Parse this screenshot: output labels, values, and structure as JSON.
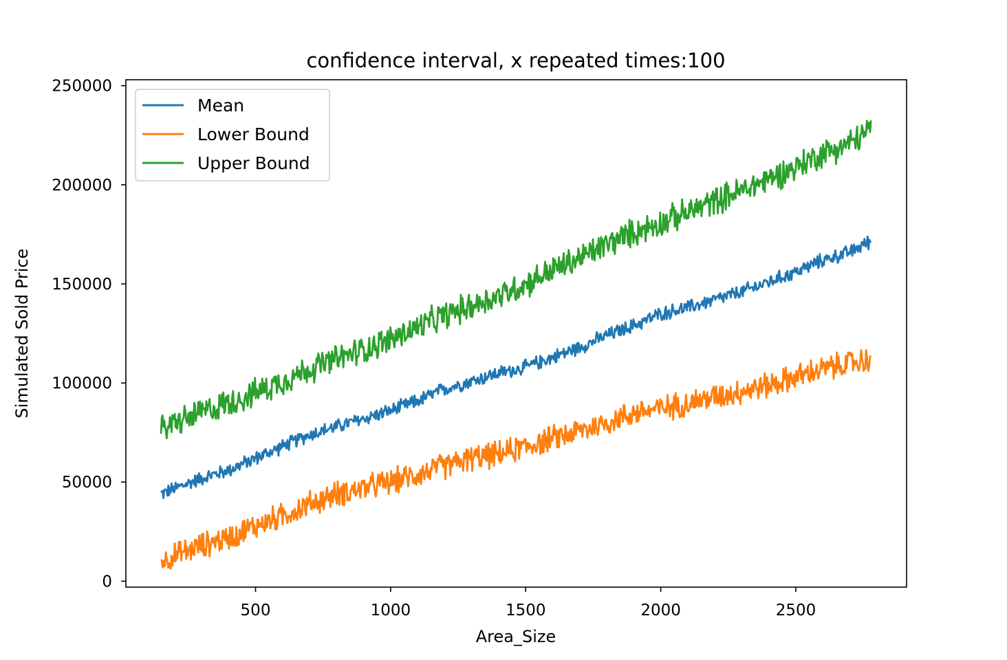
{
  "chart_data": {
    "type": "line",
    "title": "confidence interval, x repeated times:100",
    "xlabel": "Area_Size",
    "ylabel": "Simulated Sold Price",
    "xlim": [
      20,
      2910
    ],
    "ylim": [
      -3000,
      253000
    ],
    "xticks": [
      500,
      1000,
      1500,
      2000,
      2500
    ],
    "yticks": [
      0,
      50000,
      100000,
      150000,
      200000,
      250000
    ],
    "legend_position": "upper-left",
    "grid": false,
    "x_range": [
      150,
      2780
    ],
    "series": [
      {
        "name": "Mean",
        "color": "#1f77b4",
        "values": [
          [
            150,
            44000
          ],
          [
            300,
            52000
          ],
          [
            400,
            56000
          ],
          [
            500,
            62000
          ],
          [
            600,
            68000
          ],
          [
            700,
            74000
          ],
          [
            800,
            78000
          ],
          [
            900,
            82000
          ],
          [
            1000,
            86000
          ],
          [
            1100,
            91000
          ],
          [
            1200,
            97000
          ],
          [
            1300,
            101000
          ],
          [
            1400,
            105000
          ],
          [
            1500,
            108000
          ],
          [
            1600,
            113000
          ],
          [
            1700,
            118000
          ],
          [
            1800,
            124000
          ],
          [
            1900,
            129000
          ],
          [
            2000,
            135000
          ],
          [
            2100,
            138000
          ],
          [
            2200,
            142000
          ],
          [
            2300,
            146000
          ],
          [
            2400,
            151000
          ],
          [
            2500,
            156000
          ],
          [
            2600,
            162000
          ],
          [
            2700,
            166000
          ],
          [
            2780,
            172000
          ]
        ],
        "noise": 3000
      },
      {
        "name": "Lower Bound",
        "color": "#ff7f0e",
        "values": [
          [
            150,
            10000
          ],
          [
            300,
            18000
          ],
          [
            400,
            22000
          ],
          [
            500,
            28000
          ],
          [
            600,
            33000
          ],
          [
            700,
            39000
          ],
          [
            800,
            44000
          ],
          [
            900,
            47000
          ],
          [
            1000,
            50000
          ],
          [
            1100,
            54000
          ],
          [
            1200,
            58000
          ],
          [
            1300,
            62000
          ],
          [
            1400,
            64000
          ],
          [
            1500,
            68000
          ],
          [
            1600,
            72000
          ],
          [
            1700,
            76000
          ],
          [
            1800,
            80000
          ],
          [
            1900,
            85000
          ],
          [
            2000,
            87000
          ],
          [
            2100,
            90000
          ],
          [
            2200,
            93000
          ],
          [
            2300,
            96000
          ],
          [
            2400,
            99000
          ],
          [
            2500,
            103000
          ],
          [
            2600,
            107000
          ],
          [
            2700,
            110000
          ],
          [
            2780,
            112000
          ]
        ],
        "noise": 5500
      },
      {
        "name": "Upper Bound",
        "color": "#2ca02c",
        "values": [
          [
            150,
            77000
          ],
          [
            300,
            85000
          ],
          [
            400,
            90000
          ],
          [
            500,
            95000
          ],
          [
            600,
            101000
          ],
          [
            700,
            107000
          ],
          [
            800,
            112000
          ],
          [
            900,
            117000
          ],
          [
            1000,
            122000
          ],
          [
            1100,
            128000
          ],
          [
            1200,
            134000
          ],
          [
            1300,
            139000
          ],
          [
            1400,
            144000
          ],
          [
            1500,
            150000
          ],
          [
            1600,
            157000
          ],
          [
            1700,
            163000
          ],
          [
            1800,
            170000
          ],
          [
            1900,
            176000
          ],
          [
            2000,
            181000
          ],
          [
            2100,
            186000
          ],
          [
            2200,
            192000
          ],
          [
            2300,
            197000
          ],
          [
            2400,
            203000
          ],
          [
            2500,
            209000
          ],
          [
            2600,
            216000
          ],
          [
            2700,
            221000
          ],
          [
            2780,
            228000
          ]
        ],
        "noise": 6000
      }
    ]
  }
}
